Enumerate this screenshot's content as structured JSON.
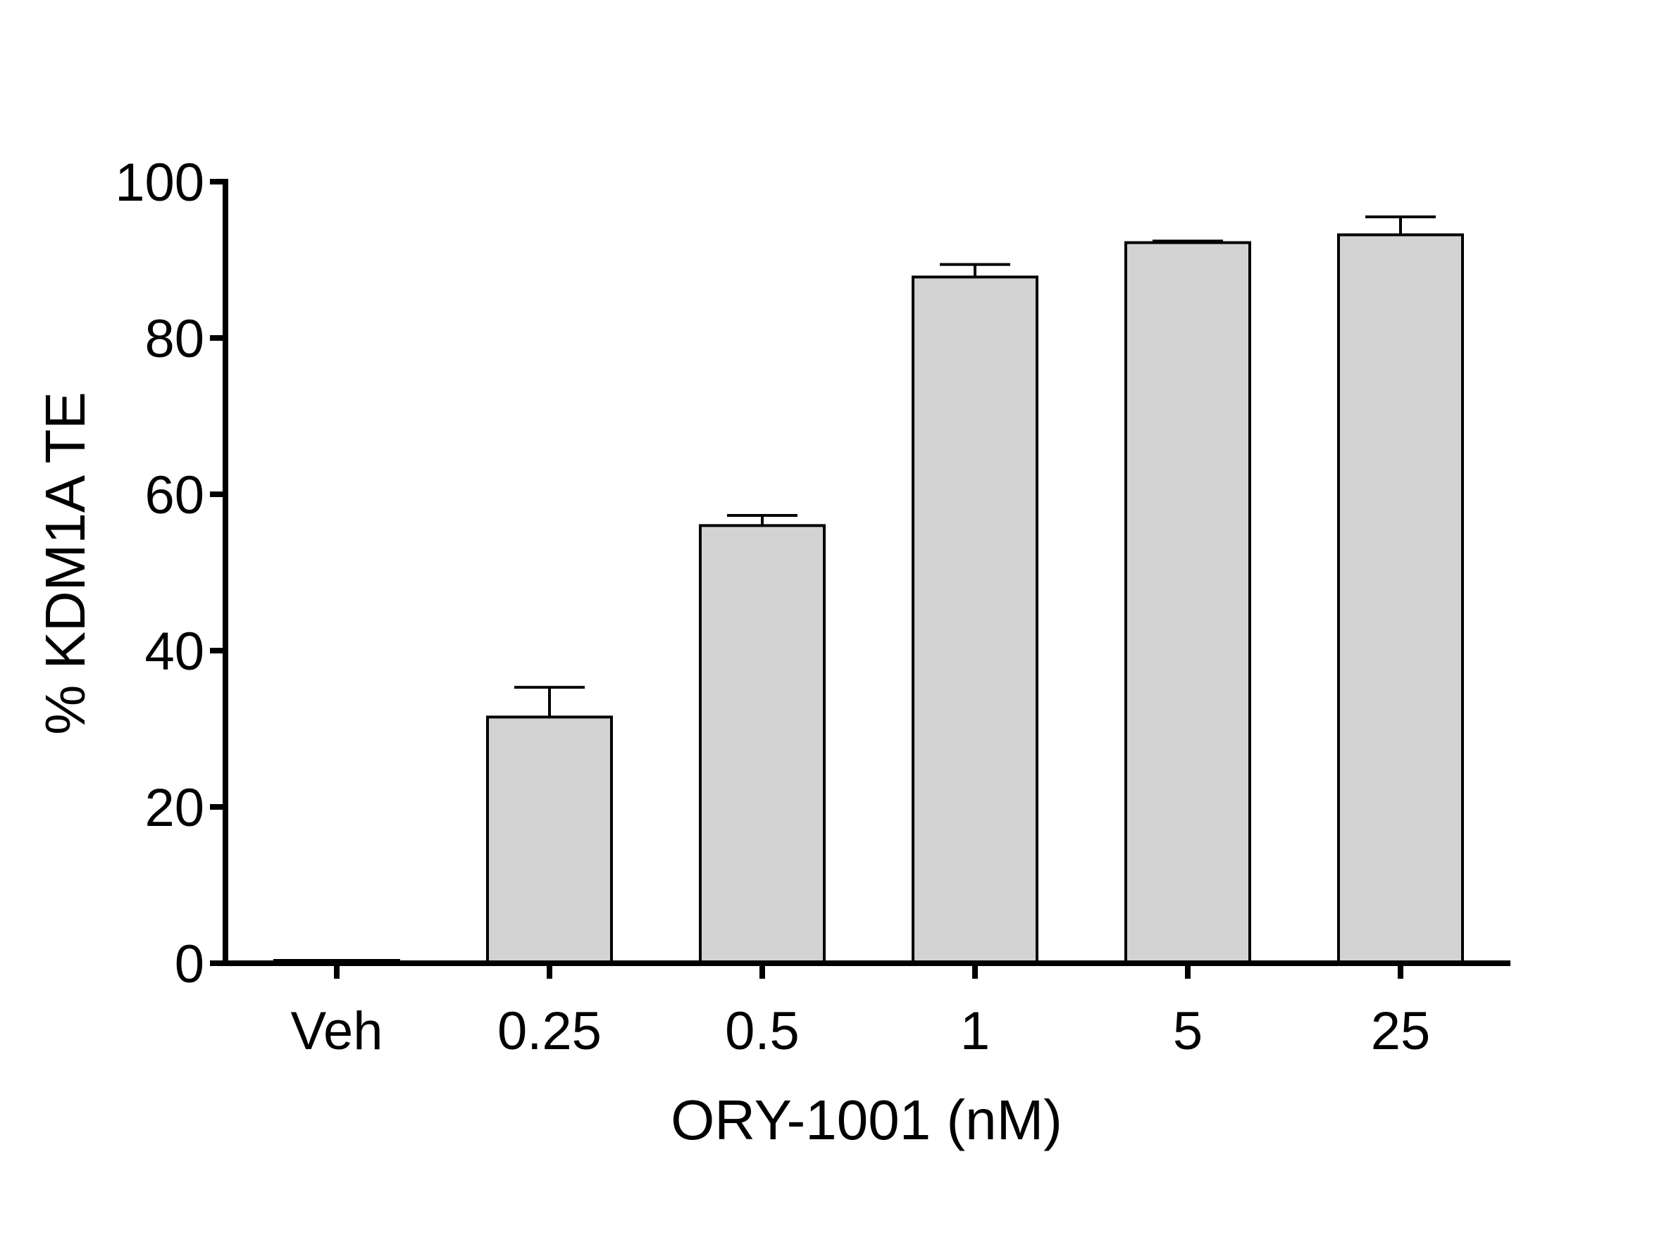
{
  "chart_data": {
    "type": "bar",
    "title": "",
    "xlabel": "ORY-1001 (nM)",
    "ylabel": "% KDM1A TE",
    "categories": [
      "Veh",
      "0.25",
      "0.5",
      "1",
      "5",
      "25"
    ],
    "values": [
      0.3,
      31.5,
      56.0,
      87.8,
      92.2,
      93.2
    ],
    "error_upper": [
      0.0,
      3.8,
      1.3,
      1.6,
      0.2,
      2.3
    ],
    "ylim": [
      0,
      100
    ],
    "yticks": [
      "0",
      "20",
      "40",
      "60",
      "80",
      "100"
    ],
    "grid": false,
    "legend": "none",
    "colors": {
      "bar_fill": "#d3d3d3",
      "bar_stroke": "#000000",
      "axis": "#000000"
    }
  }
}
